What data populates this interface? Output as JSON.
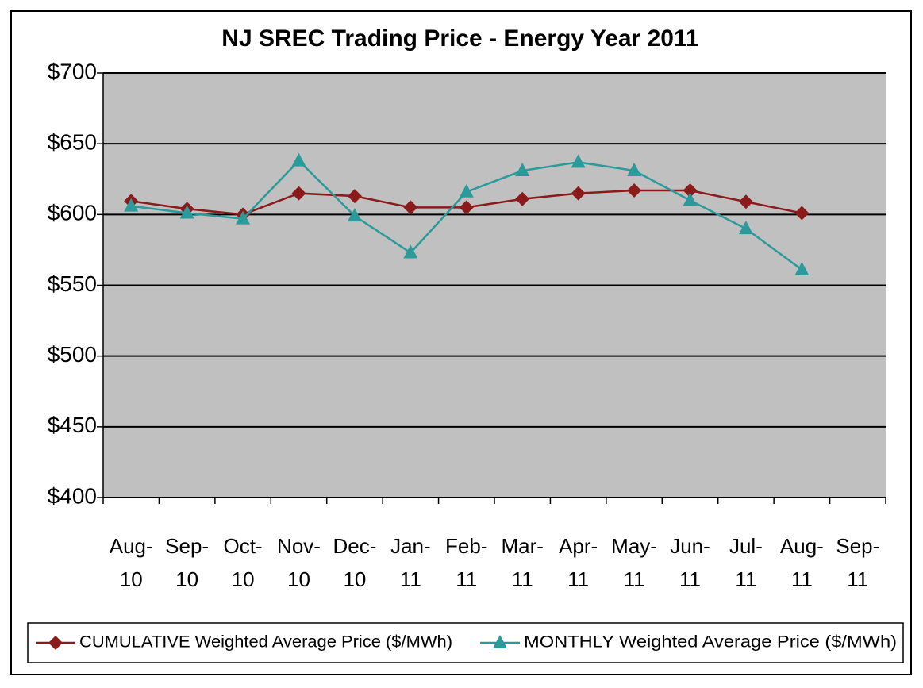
{
  "chart_data": {
    "type": "line",
    "title": "NJ SREC Trading Price - Energy Year 2011",
    "categories": [
      "Aug-10",
      "Sep-10",
      "Oct-10",
      "Nov-10",
      "Dec-10",
      "Jan-11",
      "Feb-11",
      "Mar-11",
      "Apr-11",
      "May-11",
      "Jun-11",
      "Jul-11",
      "Aug-11",
      "Sep-11"
    ],
    "series": [
      {
        "name": "CUMULATIVE Weighted Average Price ($/MWh)",
        "color": "#8b1a1a",
        "marker": "diamond",
        "values": [
          609.5,
          604,
          600,
          615,
          613,
          605,
          605,
          611,
          615,
          617,
          617,
          609,
          601,
          null
        ]
      },
      {
        "name": "MONTHLY Weighted Average Price ($/MWh)",
        "color": "#2a9a9a",
        "marker": "triangle",
        "values": [
          606,
          601,
          597,
          638,
          599,
          573,
          616,
          631,
          637,
          631,
          610,
          590,
          561,
          null
        ]
      }
    ],
    "ylim": [
      400,
      700
    ],
    "yticks": [
      {
        "value": 400,
        "label": "$400"
      },
      {
        "value": 450,
        "label": "$450"
      },
      {
        "value": 500,
        "label": "$500"
      },
      {
        "value": 550,
        "label": "$550"
      },
      {
        "value": 600,
        "label": "$600"
      },
      {
        "value": 650,
        "label": "$650"
      },
      {
        "value": 700,
        "label": "$700"
      }
    ],
    "grid": true
  }
}
